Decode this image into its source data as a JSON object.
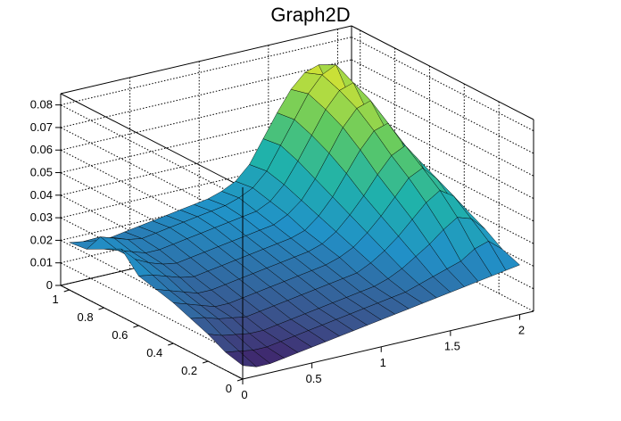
{
  "chart_data": {
    "type": "surface",
    "title": "Graph2D",
    "x_ticks": [
      "0",
      "0.5",
      "1",
      "1.5",
      "2"
    ],
    "y_ticks": [
      "0",
      "0.2",
      "0.4",
      "0.6",
      "0.8",
      "1"
    ],
    "z_ticks": [
      "0",
      "0.01",
      "0.02",
      "0.03",
      "0.04",
      "0.05",
      "0.06",
      "0.07",
      "0.08"
    ],
    "xlim": [
      0,
      2.1
    ],
    "ylim": [
      0,
      1.05
    ],
    "zlim": [
      0,
      0.085
    ],
    "grid": true,
    "colormap": "viridis",
    "grid_x": [
      0,
      0.1,
      0.2,
      0.3,
      0.4,
      0.5,
      0.6,
      0.7,
      0.8,
      0.9,
      1.0,
      1.1,
      1.2,
      1.3,
      1.4,
      1.5,
      1.6,
      1.7,
      1.8,
      1.9,
      2.0
    ],
    "grid_y": [
      0,
      0.1,
      0.2,
      0.3,
      0.4,
      0.5,
      0.6,
      0.7,
      0.8,
      0.9,
      1.0
    ],
    "z": [
      [
        0.006,
        0.004,
        0.004,
        0.005,
        0.006,
        0.007,
        0.008,
        0.009,
        0.01,
        0.011,
        0.012,
        0.013,
        0.014,
        0.015,
        0.016,
        0.017,
        0.018,
        0.019,
        0.02,
        0.021,
        0.022
      ],
      [
        0.008,
        0.007,
        0.006,
        0.006,
        0.007,
        0.008,
        0.009,
        0.01,
        0.011,
        0.012,
        0.013,
        0.014,
        0.015,
        0.016,
        0.018,
        0.02,
        0.022,
        0.024,
        0.028,
        0.03,
        0.025
      ],
      [
        0.012,
        0.01,
        0.009,
        0.008,
        0.008,
        0.009,
        0.01,
        0.011,
        0.012,
        0.013,
        0.014,
        0.015,
        0.016,
        0.018,
        0.021,
        0.025,
        0.029,
        0.034,
        0.038,
        0.036,
        0.03
      ],
      [
        0.015,
        0.014,
        0.012,
        0.011,
        0.01,
        0.011,
        0.012,
        0.013,
        0.014,
        0.015,
        0.016,
        0.017,
        0.018,
        0.021,
        0.025,
        0.03,
        0.036,
        0.042,
        0.046,
        0.042,
        0.034
      ],
      [
        0.018,
        0.016,
        0.014,
        0.012,
        0.012,
        0.013,
        0.014,
        0.015,
        0.016,
        0.017,
        0.018,
        0.019,
        0.021,
        0.024,
        0.029,
        0.035,
        0.042,
        0.049,
        0.052,
        0.046,
        0.036
      ],
      [
        0.02,
        0.018,
        0.016,
        0.014,
        0.014,
        0.015,
        0.016,
        0.017,
        0.018,
        0.019,
        0.02,
        0.021,
        0.023,
        0.027,
        0.033,
        0.04,
        0.048,
        0.055,
        0.058,
        0.05,
        0.037
      ],
      [
        0.022,
        0.021,
        0.019,
        0.017,
        0.016,
        0.017,
        0.018,
        0.019,
        0.02,
        0.021,
        0.022,
        0.023,
        0.025,
        0.03,
        0.037,
        0.046,
        0.055,
        0.062,
        0.064,
        0.054,
        0.038
      ],
      [
        0.03,
        0.024,
        0.021,
        0.019,
        0.018,
        0.019,
        0.02,
        0.021,
        0.022,
        0.023,
        0.024,
        0.025,
        0.028,
        0.033,
        0.041,
        0.051,
        0.061,
        0.068,
        0.07,
        0.057,
        0.038
      ],
      [
        0.026,
        0.024,
        0.022,
        0.02,
        0.02,
        0.021,
        0.022,
        0.023,
        0.024,
        0.025,
        0.026,
        0.027,
        0.03,
        0.036,
        0.045,
        0.055,
        0.065,
        0.072,
        0.074,
        0.06,
        0.039
      ],
      [
        0.022,
        0.026,
        0.024,
        0.022,
        0.021,
        0.022,
        0.023,
        0.024,
        0.025,
        0.026,
        0.027,
        0.029,
        0.032,
        0.038,
        0.048,
        0.058,
        0.068,
        0.075,
        0.078,
        0.062,
        0.04
      ],
      [
        0.021,
        0.02,
        0.019,
        0.019,
        0.02,
        0.021,
        0.022,
        0.023,
        0.024,
        0.025,
        0.026,
        0.028,
        0.031,
        0.037,
        0.047,
        0.057,
        0.066,
        0.072,
        0.074,
        0.06,
        0.04
      ]
    ]
  }
}
